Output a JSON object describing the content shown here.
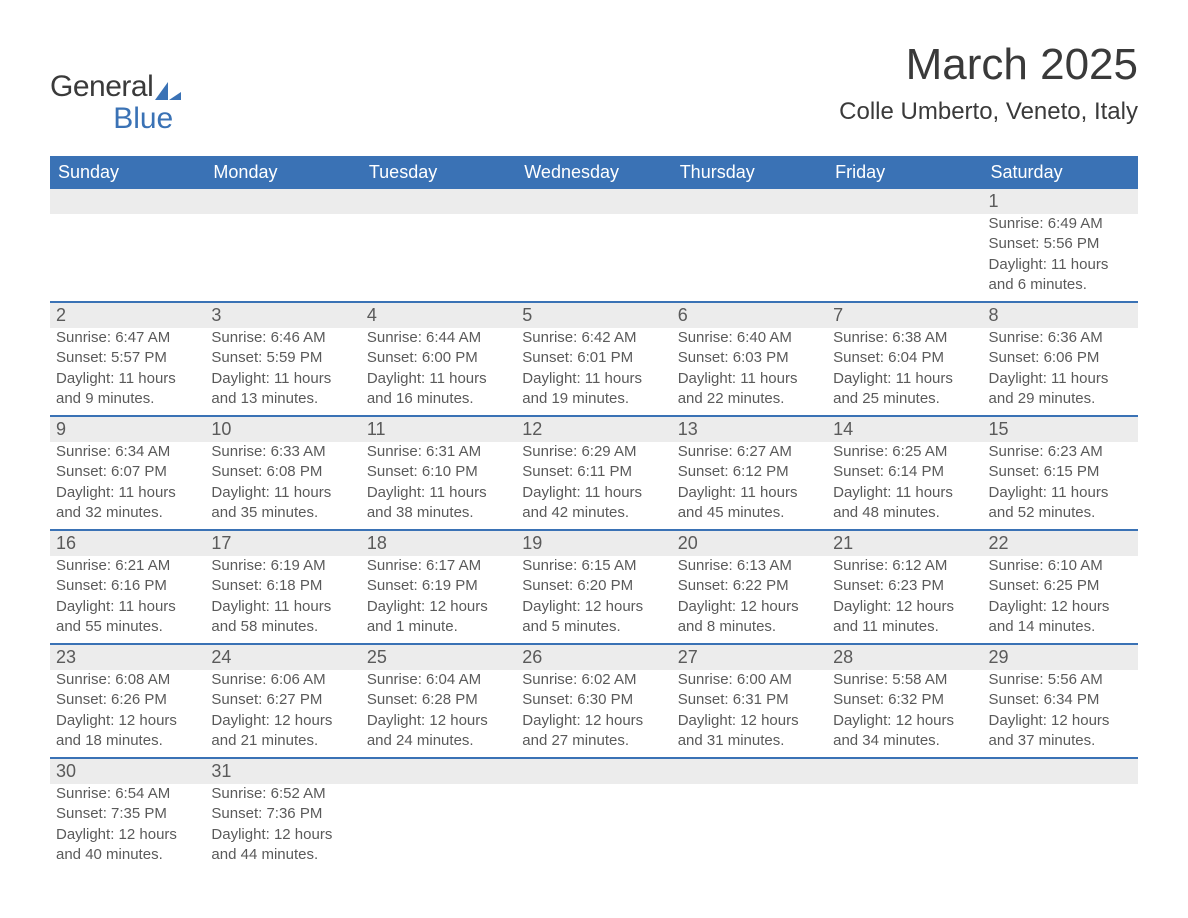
{
  "logo": {
    "text1": "General",
    "text2": "Blue"
  },
  "title": "March 2025",
  "location": "Colle Umberto, Veneto, Italy",
  "day_headers": [
    "Sunday",
    "Monday",
    "Tuesday",
    "Wednesday",
    "Thursday",
    "Friday",
    "Saturday"
  ],
  "colors": {
    "header_bg": "#3a72b5",
    "header_fg": "#ffffff",
    "daynum_bg": "#ececec",
    "border": "#3a72b5",
    "text": "#3a3a3a",
    "body_text": "#5a5a5a"
  },
  "weeks": [
    [
      {
        "num": "",
        "sunrise": "",
        "sunset": "",
        "daylight": ""
      },
      {
        "num": "",
        "sunrise": "",
        "sunset": "",
        "daylight": ""
      },
      {
        "num": "",
        "sunrise": "",
        "sunset": "",
        "daylight": ""
      },
      {
        "num": "",
        "sunrise": "",
        "sunset": "",
        "daylight": ""
      },
      {
        "num": "",
        "sunrise": "",
        "sunset": "",
        "daylight": ""
      },
      {
        "num": "",
        "sunrise": "",
        "sunset": "",
        "daylight": ""
      },
      {
        "num": "1",
        "sunrise": "Sunrise: 6:49 AM",
        "sunset": "Sunset: 5:56 PM",
        "daylight": "Daylight: 11 hours and 6 minutes."
      }
    ],
    [
      {
        "num": "2",
        "sunrise": "Sunrise: 6:47 AM",
        "sunset": "Sunset: 5:57 PM",
        "daylight": "Daylight: 11 hours and 9 minutes."
      },
      {
        "num": "3",
        "sunrise": "Sunrise: 6:46 AM",
        "sunset": "Sunset: 5:59 PM",
        "daylight": "Daylight: 11 hours and 13 minutes."
      },
      {
        "num": "4",
        "sunrise": "Sunrise: 6:44 AM",
        "sunset": "Sunset: 6:00 PM",
        "daylight": "Daylight: 11 hours and 16 minutes."
      },
      {
        "num": "5",
        "sunrise": "Sunrise: 6:42 AM",
        "sunset": "Sunset: 6:01 PM",
        "daylight": "Daylight: 11 hours and 19 minutes."
      },
      {
        "num": "6",
        "sunrise": "Sunrise: 6:40 AM",
        "sunset": "Sunset: 6:03 PM",
        "daylight": "Daylight: 11 hours and 22 minutes."
      },
      {
        "num": "7",
        "sunrise": "Sunrise: 6:38 AM",
        "sunset": "Sunset: 6:04 PM",
        "daylight": "Daylight: 11 hours and 25 minutes."
      },
      {
        "num": "8",
        "sunrise": "Sunrise: 6:36 AM",
        "sunset": "Sunset: 6:06 PM",
        "daylight": "Daylight: 11 hours and 29 minutes."
      }
    ],
    [
      {
        "num": "9",
        "sunrise": "Sunrise: 6:34 AM",
        "sunset": "Sunset: 6:07 PM",
        "daylight": "Daylight: 11 hours and 32 minutes."
      },
      {
        "num": "10",
        "sunrise": "Sunrise: 6:33 AM",
        "sunset": "Sunset: 6:08 PM",
        "daylight": "Daylight: 11 hours and 35 minutes."
      },
      {
        "num": "11",
        "sunrise": "Sunrise: 6:31 AM",
        "sunset": "Sunset: 6:10 PM",
        "daylight": "Daylight: 11 hours and 38 minutes."
      },
      {
        "num": "12",
        "sunrise": "Sunrise: 6:29 AM",
        "sunset": "Sunset: 6:11 PM",
        "daylight": "Daylight: 11 hours and 42 minutes."
      },
      {
        "num": "13",
        "sunrise": "Sunrise: 6:27 AM",
        "sunset": "Sunset: 6:12 PM",
        "daylight": "Daylight: 11 hours and 45 minutes."
      },
      {
        "num": "14",
        "sunrise": "Sunrise: 6:25 AM",
        "sunset": "Sunset: 6:14 PM",
        "daylight": "Daylight: 11 hours and 48 minutes."
      },
      {
        "num": "15",
        "sunrise": "Sunrise: 6:23 AM",
        "sunset": "Sunset: 6:15 PM",
        "daylight": "Daylight: 11 hours and 52 minutes."
      }
    ],
    [
      {
        "num": "16",
        "sunrise": "Sunrise: 6:21 AM",
        "sunset": "Sunset: 6:16 PM",
        "daylight": "Daylight: 11 hours and 55 minutes."
      },
      {
        "num": "17",
        "sunrise": "Sunrise: 6:19 AM",
        "sunset": "Sunset: 6:18 PM",
        "daylight": "Daylight: 11 hours and 58 minutes."
      },
      {
        "num": "18",
        "sunrise": "Sunrise: 6:17 AM",
        "sunset": "Sunset: 6:19 PM",
        "daylight": "Daylight: 12 hours and 1 minute."
      },
      {
        "num": "19",
        "sunrise": "Sunrise: 6:15 AM",
        "sunset": "Sunset: 6:20 PM",
        "daylight": "Daylight: 12 hours and 5 minutes."
      },
      {
        "num": "20",
        "sunrise": "Sunrise: 6:13 AM",
        "sunset": "Sunset: 6:22 PM",
        "daylight": "Daylight: 12 hours and 8 minutes."
      },
      {
        "num": "21",
        "sunrise": "Sunrise: 6:12 AM",
        "sunset": "Sunset: 6:23 PM",
        "daylight": "Daylight: 12 hours and 11 minutes."
      },
      {
        "num": "22",
        "sunrise": "Sunrise: 6:10 AM",
        "sunset": "Sunset: 6:25 PM",
        "daylight": "Daylight: 12 hours and 14 minutes."
      }
    ],
    [
      {
        "num": "23",
        "sunrise": "Sunrise: 6:08 AM",
        "sunset": "Sunset: 6:26 PM",
        "daylight": "Daylight: 12 hours and 18 minutes."
      },
      {
        "num": "24",
        "sunrise": "Sunrise: 6:06 AM",
        "sunset": "Sunset: 6:27 PM",
        "daylight": "Daylight: 12 hours and 21 minutes."
      },
      {
        "num": "25",
        "sunrise": "Sunrise: 6:04 AM",
        "sunset": "Sunset: 6:28 PM",
        "daylight": "Daylight: 12 hours and 24 minutes."
      },
      {
        "num": "26",
        "sunrise": "Sunrise: 6:02 AM",
        "sunset": "Sunset: 6:30 PM",
        "daylight": "Daylight: 12 hours and 27 minutes."
      },
      {
        "num": "27",
        "sunrise": "Sunrise: 6:00 AM",
        "sunset": "Sunset: 6:31 PM",
        "daylight": "Daylight: 12 hours and 31 minutes."
      },
      {
        "num": "28",
        "sunrise": "Sunrise: 5:58 AM",
        "sunset": "Sunset: 6:32 PM",
        "daylight": "Daylight: 12 hours and 34 minutes."
      },
      {
        "num": "29",
        "sunrise": "Sunrise: 5:56 AM",
        "sunset": "Sunset: 6:34 PM",
        "daylight": "Daylight: 12 hours and 37 minutes."
      }
    ],
    [
      {
        "num": "30",
        "sunrise": "Sunrise: 6:54 AM",
        "sunset": "Sunset: 7:35 PM",
        "daylight": "Daylight: 12 hours and 40 minutes."
      },
      {
        "num": "31",
        "sunrise": "Sunrise: 6:52 AM",
        "sunset": "Sunset: 7:36 PM",
        "daylight": "Daylight: 12 hours and 44 minutes."
      },
      {
        "num": "",
        "sunrise": "",
        "sunset": "",
        "daylight": ""
      },
      {
        "num": "",
        "sunrise": "",
        "sunset": "",
        "daylight": ""
      },
      {
        "num": "",
        "sunrise": "",
        "sunset": "",
        "daylight": ""
      },
      {
        "num": "",
        "sunrise": "",
        "sunset": "",
        "daylight": ""
      },
      {
        "num": "",
        "sunrise": "",
        "sunset": "",
        "daylight": ""
      }
    ]
  ]
}
